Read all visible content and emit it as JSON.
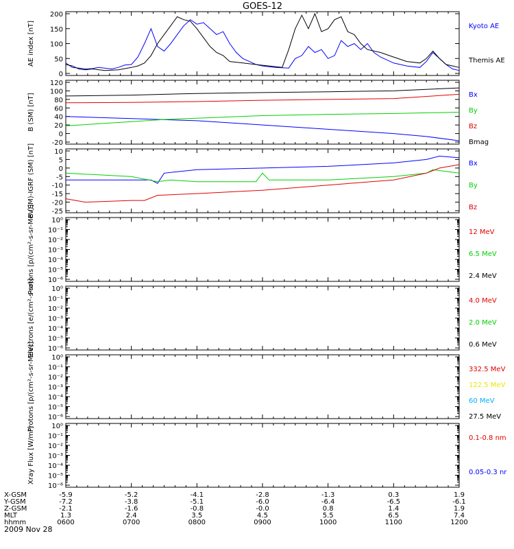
{
  "title": "GOES-12",
  "date": "2009 Nov 28",
  "colors": {
    "black": "#000000",
    "blue": "#0000ff",
    "red": "#e00000",
    "green": "#00d000",
    "yellow": "#e8e800",
    "cyan": "#00b0ff"
  },
  "chart_data": [
    {
      "type": "line",
      "id": "ae",
      "ylabel": "AE index [nT]",
      "ylim": [
        0,
        200
      ],
      "yticks": [
        "0",
        "50",
        "100",
        "150",
        "200"
      ],
      "xlim": [
        "06:00",
        "12:00"
      ],
      "series": [
        {
          "name": "Kyoto AE",
          "color": "#0000ff",
          "points": [
            [
              6.0,
              35
            ],
            [
              6.1,
              20
            ],
            [
              6.2,
              18
            ],
            [
              6.3,
              15
            ],
            [
              6.4,
              16
            ],
            [
              6.5,
              20
            ],
            [
              6.7,
              15
            ],
            [
              6.8,
              20
            ],
            [
              6.9,
              28
            ],
            [
              7.0,
              30
            ],
            [
              7.1,
              55
            ],
            [
              7.2,
              100
            ],
            [
              7.3,
              150
            ],
            [
              7.4,
              90
            ],
            [
              7.5,
              75
            ],
            [
              7.6,
              100
            ],
            [
              7.7,
              130
            ],
            [
              7.8,
              160
            ],
            [
              7.9,
              180
            ],
            [
              8.0,
              165
            ],
            [
              8.1,
              170
            ],
            [
              8.2,
              150
            ],
            [
              8.3,
              130
            ],
            [
              8.4,
              140
            ],
            [
              8.5,
              100
            ],
            [
              8.6,
              70
            ],
            [
              8.7,
              50
            ],
            [
              8.8,
              40
            ],
            [
              8.9,
              30
            ],
            [
              9.0,
              25
            ],
            [
              9.2,
              20
            ],
            [
              9.4,
              18
            ],
            [
              9.5,
              50
            ],
            [
              9.6,
              60
            ],
            [
              9.7,
              90
            ],
            [
              9.8,
              70
            ],
            [
              9.9,
              80
            ],
            [
              10.0,
              50
            ],
            [
              10.1,
              60
            ],
            [
              10.2,
              110
            ],
            [
              10.3,
              90
            ],
            [
              10.4,
              100
            ],
            [
              10.5,
              80
            ],
            [
              10.6,
              100
            ],
            [
              10.7,
              70
            ],
            [
              10.8,
              55
            ],
            [
              10.9,
              45
            ],
            [
              11.0,
              35
            ],
            [
              11.2,
              25
            ],
            [
              11.4,
              20
            ],
            [
              11.5,
              40
            ],
            [
              11.6,
              70
            ],
            [
              11.7,
              50
            ],
            [
              11.8,
              30
            ],
            [
              11.9,
              15
            ],
            [
              12.0,
              10
            ]
          ]
        },
        {
          "name": "Themis AE",
          "color": "#000000",
          "points": [
            [
              6.0,
              30
            ],
            [
              6.1,
              25
            ],
            [
              6.2,
              15
            ],
            [
              6.3,
              12
            ],
            [
              6.4,
              15
            ],
            [
              6.6,
              10
            ],
            [
              6.8,
              12
            ],
            [
              7.0,
              20
            ],
            [
              7.1,
              25
            ],
            [
              7.2,
              35
            ],
            [
              7.3,
              60
            ],
            [
              7.4,
              100
            ],
            [
              7.5,
              130
            ],
            [
              7.6,
              160
            ],
            [
              7.7,
              190
            ],
            [
              7.8,
              180
            ],
            [
              7.9,
              175
            ],
            [
              8.0,
              150
            ],
            [
              8.1,
              120
            ],
            [
              8.2,
              90
            ],
            [
              8.3,
              70
            ],
            [
              8.4,
              60
            ],
            [
              8.5,
              40
            ],
            [
              8.7,
              35
            ],
            [
              8.9,
              30
            ],
            [
              9.1,
              25
            ],
            [
              9.3,
              20
            ],
            [
              9.4,
              80
            ],
            [
              9.5,
              150
            ],
            [
              9.6,
              195
            ],
            [
              9.7,
              150
            ],
            [
              9.8,
              200
            ],
            [
              9.9,
              140
            ],
            [
              10.0,
              150
            ],
            [
              10.1,
              180
            ],
            [
              10.2,
              190
            ],
            [
              10.3,
              140
            ],
            [
              10.4,
              130
            ],
            [
              10.5,
              100
            ],
            [
              10.6,
              80
            ],
            [
              10.8,
              70
            ],
            [
              11.0,
              55
            ],
            [
              11.2,
              40
            ],
            [
              11.4,
              35
            ],
            [
              11.5,
              50
            ],
            [
              11.6,
              75
            ],
            [
              11.7,
              50
            ],
            [
              11.8,
              30
            ],
            [
              11.9,
              25
            ],
            [
              12.0,
              20
            ]
          ]
        }
      ],
      "legend": [
        {
          "label": "Kyoto AE",
          "color": "#0000ff"
        },
        {
          "label": "Themis AE",
          "color": "#000000"
        }
      ]
    },
    {
      "type": "line",
      "id": "bsm",
      "ylabel": "B (SM) [nT]",
      "ylim": [
        -20,
        120
      ],
      "yticks": [
        "-20",
        "0",
        "20",
        "40",
        "60",
        "80",
        "100",
        "120"
      ],
      "series": [
        {
          "name": "Bx",
          "color": "#0000ff",
          "points": [
            [
              6.0,
              40
            ],
            [
              7.0,
              35
            ],
            [
              8.0,
              30
            ],
            [
              9.0,
              20
            ],
            [
              10.0,
              10
            ],
            [
              11.0,
              0
            ],
            [
              11.5,
              -7
            ],
            [
              12.0,
              -17
            ]
          ]
        },
        {
          "name": "By",
          "color": "#00d000",
          "points": [
            [
              6.0,
              18
            ],
            [
              7.0,
              28
            ],
            [
              7.5,
              33
            ],
            [
              8.0,
              36
            ],
            [
              9.0,
              42
            ],
            [
              10.0,
              45
            ],
            [
              11.0,
              47
            ],
            [
              12.0,
              50
            ]
          ]
        },
        {
          "name": "Bz",
          "color": "#e00000",
          "points": [
            [
              6.0,
              72
            ],
            [
              7.0,
              73
            ],
            [
              8.0,
              75
            ],
            [
              9.0,
              78
            ],
            [
              10.0,
              80
            ],
            [
              11.0,
              82
            ],
            [
              12.0,
              92
            ]
          ]
        },
        {
          "name": "Bmag",
          "color": "#000000",
          "points": [
            [
              6.0,
              88
            ],
            [
              7.0,
              90
            ],
            [
              8.0,
              94
            ],
            [
              9.0,
              96
            ],
            [
              10.0,
              98
            ],
            [
              11.0,
              100
            ],
            [
              12.0,
              107
            ]
          ]
        }
      ],
      "legend": [
        {
          "label": "Bx",
          "color": "#0000ff"
        },
        {
          "label": "By",
          "color": "#00d000"
        },
        {
          "label": "Bz",
          "color": "#e00000"
        },
        {
          "label": "Bmag",
          "color": "#000000"
        }
      ]
    },
    {
      "type": "line",
      "id": "bigrf",
      "ylabel": "B (SM)-IGRF (SM) [nT]",
      "ylim": [
        -25,
        10
      ],
      "yticks": [
        "-25",
        "-20",
        "-15",
        "-10",
        "-5",
        "0",
        "5",
        "10"
      ],
      "series": [
        {
          "name": "Bx",
          "color": "#0000ff",
          "points": [
            [
              6.0,
              -7
            ],
            [
              7.0,
              -7
            ],
            [
              7.3,
              -7
            ],
            [
              7.4,
              -9
            ],
            [
              7.5,
              -3
            ],
            [
              8.0,
              -1
            ],
            [
              9.0,
              0
            ],
            [
              10.0,
              1
            ],
            [
              11.0,
              3
            ],
            [
              11.5,
              5
            ],
            [
              11.7,
              7
            ],
            [
              12.0,
              6
            ]
          ]
        },
        {
          "name": "By",
          "color": "#00d000",
          "points": [
            [
              6.0,
              -3
            ],
            [
              6.5,
              -4
            ],
            [
              7.0,
              -5
            ],
            [
              7.4,
              -8
            ],
            [
              7.6,
              -7
            ],
            [
              8.0,
              -8
            ],
            [
              8.9,
              -8
            ],
            [
              9.0,
              -3
            ],
            [
              9.1,
              -7
            ],
            [
              10.0,
              -7
            ],
            [
              11.0,
              -5
            ],
            [
              11.5,
              -3
            ],
            [
              11.6,
              -1
            ],
            [
              12.0,
              -3
            ]
          ]
        },
        {
          "name": "Bz",
          "color": "#e00000",
          "points": [
            [
              6.0,
              -18
            ],
            [
              6.3,
              -20
            ],
            [
              7.0,
              -19
            ],
            [
              7.2,
              -19
            ],
            [
              7.4,
              -16
            ],
            [
              8.0,
              -15
            ],
            [
              9.0,
              -13
            ],
            [
              10.0,
              -10
            ],
            [
              11.0,
              -7
            ],
            [
              11.5,
              -3
            ],
            [
              11.7,
              0
            ],
            [
              12.0,
              2
            ]
          ]
        }
      ],
      "legend": [
        {
          "label": "Bx",
          "color": "#0000ff"
        },
        {
          "label": "By",
          "color": "#00d000"
        },
        {
          "label": "Bz",
          "color": "#e00000"
        }
      ]
    },
    {
      "type": "line",
      "id": "protons1",
      "ylabel": "Protons [p/(cm²-s-sr-MeV)]",
      "yscale": "log",
      "ylim": [
        1e-06,
        1
      ],
      "series": [],
      "legend": [
        {
          "label": "12 MeV",
          "color": "#e00000"
        },
        {
          "label": "6.5 MeV",
          "color": "#00d000"
        },
        {
          "label": "2.4 MeV",
          "color": "#000000"
        }
      ]
    },
    {
      "type": "line",
      "id": "electrons",
      "ylabel": "Electrons [e/(cm²-s-sr)]",
      "yscale": "log",
      "ylim": [
        1e-06,
        1
      ],
      "series": [],
      "legend": [
        {
          "label": "4.0 MeV",
          "color": "#e00000"
        },
        {
          "label": "2.0 MeV",
          "color": "#00d000"
        },
        {
          "label": "0.6 MeV",
          "color": "#000000"
        }
      ]
    },
    {
      "type": "line",
      "id": "protons2",
      "ylabel": "Protons [p/(cm²-s-sr-MeV)]",
      "yscale": "log",
      "ylim": [
        1e-06,
        1
      ],
      "series": [],
      "legend": [
        {
          "label": "332.5 MeV",
          "color": "#e00000"
        },
        {
          "label": "122.5 MeV",
          "color": "#e8e800"
        },
        {
          "label": "60 MeV",
          "color": "#00b0ff"
        },
        {
          "label": "27.5 MeV",
          "color": "#000000"
        }
      ]
    },
    {
      "type": "line",
      "id": "xray",
      "ylabel": "Xray Flux [W/m²]",
      "yscale": "log",
      "ylim": [
        1e-06,
        1
      ],
      "series": [],
      "legend": [
        {
          "label": "0.1-0.8 nm",
          "color": "#e00000"
        },
        {
          "label": "0.05-0.3 nr",
          "color": "#0000ff"
        }
      ]
    }
  ],
  "log_ticks": [
    "10⁰",
    "10⁻¹",
    "10⁻²",
    "10⁻³",
    "10⁻⁴",
    "10⁻⁵",
    "10⁻⁶"
  ],
  "x_table": {
    "rows": [
      {
        "label": "X-GSM",
        "values": [
          "-5.9",
          "-5.2",
          "-4.1",
          "-2.8",
          "-1.3",
          "0.3",
          "1.9"
        ]
      },
      {
        "label": "Y-GSM",
        "values": [
          "-7.2",
          "-3.8",
          "-5.1",
          "-6.0",
          "-6.4",
          "-6.5",
          "-6.1"
        ]
      },
      {
        "label": "Z-GSM",
        "values": [
          "-2.1",
          "-1.6",
          "-0.8",
          "-0.0",
          "0.8",
          "1.4",
          "1.9"
        ]
      },
      {
        "label": "MLT",
        "values": [
          "1.3",
          "2.4",
          "3.5",
          "4.5",
          "5.5",
          "6.5",
          "7.4"
        ]
      },
      {
        "label": "hhmm",
        "values": [
          "0600",
          "0700",
          "0800",
          "0900",
          "1000",
          "1100",
          "1200"
        ]
      }
    ]
  }
}
